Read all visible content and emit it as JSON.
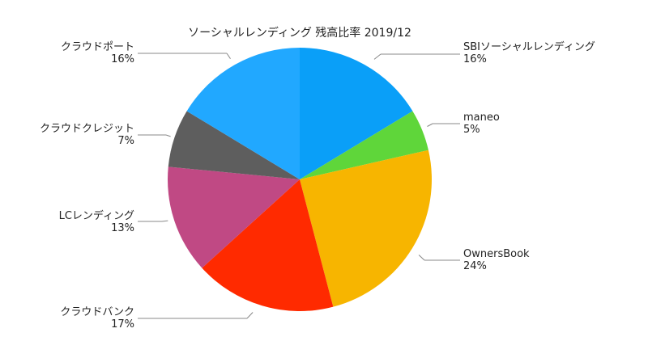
{
  "chart_data": {
    "type": "pie",
    "title": "ソーシャルレンディング 残高比率 2019/12",
    "legend": "none",
    "slices": [
      {
        "label": "SBIソーシャルレンディング",
        "value": 16,
        "display": "16%",
        "color": "#0a9ff8"
      },
      {
        "label": "maneo",
        "value": 5,
        "display": "5%",
        "color": "#5fd63a"
      },
      {
        "label": "OwnersBook",
        "value": 24,
        "display": "24%",
        "color": "#f7b500"
      },
      {
        "label": "クラウドバンク",
        "value": 17,
        "display": "17%",
        "color": "#ff2a00"
      },
      {
        "label": "LCレンディング",
        "value": 13,
        "display": "13%",
        "color": "#c04984"
      },
      {
        "label": "クラウドクレジット",
        "value": 7,
        "display": "7%",
        "color": "#5e5e5e"
      },
      {
        "label": "クラウドポート",
        "value": 16,
        "display": "16%",
        "color": "#21a8ff"
      }
    ]
  }
}
